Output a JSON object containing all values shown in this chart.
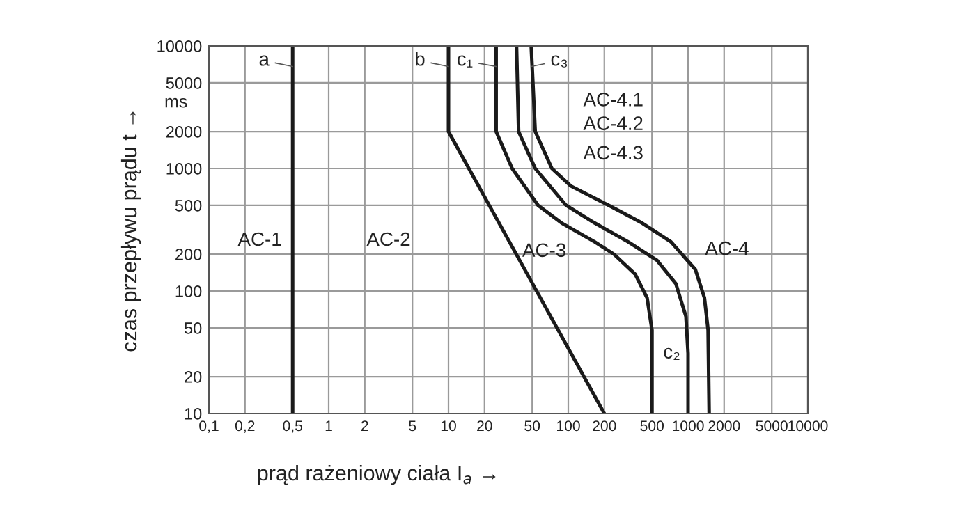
{
  "chart_data": {
    "type": "line",
    "xlabel": "prąd rażeniowy ciała I$_{a}$ →",
    "ylabel": "czas przepływu prądu t →",
    "log": "xy",
    "grid": true,
    "legend": false,
    "marker": "none",
    "line_style": "solid",
    "xlim": [
      0.1,
      10000
    ],
    "ylim": [
      10,
      10000
    ],
    "xticks": [
      {
        "value": 0.1,
        "label": "0,1"
      },
      {
        "value": 0.2,
        "label": "0,2"
      },
      {
        "value": 0.5,
        "label": "0,5"
      },
      1,
      2,
      5,
      10,
      20,
      50,
      100,
      200,
      500,
      1000,
      2000,
      5000,
      10000
    ],
    "yticks": [
      10,
      20,
      50,
      100,
      200,
      500,
      1000,
      2000,
      5000,
      10000
    ],
    "series": [
      {
        "name": "a",
        "color": "#1a1a1a",
        "x": [
          0.5,
          0.5
        ],
        "values": [
          10,
          10000
        ]
      },
      {
        "name": "b",
        "color": "#1a1a1a",
        "x": [
          10,
          10,
          200
        ],
        "values": [
          10000,
          2000,
          10
        ]
      },
      {
        "name": "c₁",
        "color": "#1a1a1a",
        "x": [
          25,
          25,
          34,
          56,
          88,
          166,
          240,
          362,
          455,
          500,
          500
        ],
        "values": [
          10000,
          2000,
          1000,
          500,
          359,
          252,
          200,
          137,
          88,
          48,
          10
        ]
      },
      {
        "name": "c₂",
        "color": "#1a1a1a",
        "x": [
          37,
          38.5,
          53,
          96,
          166,
          316,
          550,
          790,
          960,
          1000,
          1000
        ],
        "values": [
          10000,
          2000,
          1000,
          500,
          359,
          252,
          178,
          115,
          62,
          31,
          10
        ]
      },
      {
        "name": "c₃",
        "color": "#1a1a1a",
        "x": [
          49,
          53,
          73,
          105,
          218,
          413,
          720,
          1150,
          1370,
          1470,
          1500
        ],
        "values": [
          10000,
          2000,
          1000,
          720,
          500,
          359,
          252,
          150,
          88,
          48,
          10
        ]
      }
    ],
    "annotations": [
      "ms",
      "AC-1",
      "AC-2",
      "AC-3",
      "AC-4",
      "AC-4.1",
      "AC-4.2",
      "AC-4.3"
    ]
  }
}
